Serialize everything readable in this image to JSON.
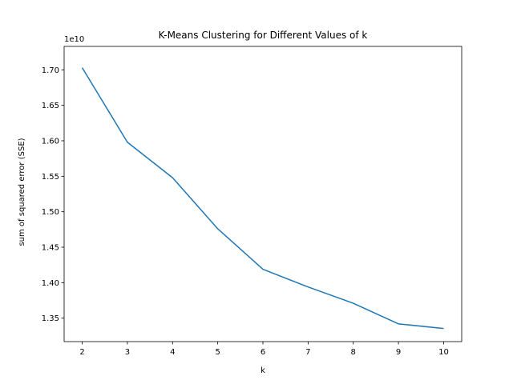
{
  "chart_data": {
    "type": "line",
    "title": "K-Means Clustering for Different Values of k",
    "xlabel": "k",
    "ylabel": "sum of squared error (SSE)",
    "y_offset_label": "1e10",
    "x": [
      2,
      3,
      4,
      5,
      6,
      7,
      8,
      9,
      10
    ],
    "series": [
      {
        "values": [
          17030000000,
          15980000000,
          15480000000,
          14760000000,
          14190000000,
          13940000000,
          13710000000,
          13420000000,
          13355000000
        ],
        "color": "#1f77b4"
      }
    ],
    "xlim": [
      1.6,
      10.4
    ],
    "ylim": [
      13170000000.0,
      17330000000.0
    ],
    "xticks": [
      2,
      3,
      4,
      5,
      6,
      7,
      8,
      9,
      10
    ],
    "xtick_labels": [
      "2",
      "3",
      "4",
      "5",
      "6",
      "7",
      "8",
      "9",
      "10"
    ],
    "yticks": [
      13500000000.0,
      14000000000.0,
      14500000000.0,
      15000000000.0,
      15500000000.0,
      16000000000.0,
      16500000000.0,
      17000000000.0
    ],
    "ytick_labels": [
      "1.35",
      "1.40",
      "1.45",
      "1.50",
      "1.55",
      "1.60",
      "1.65",
      "1.70"
    ],
    "grid": false,
    "legend": false
  }
}
